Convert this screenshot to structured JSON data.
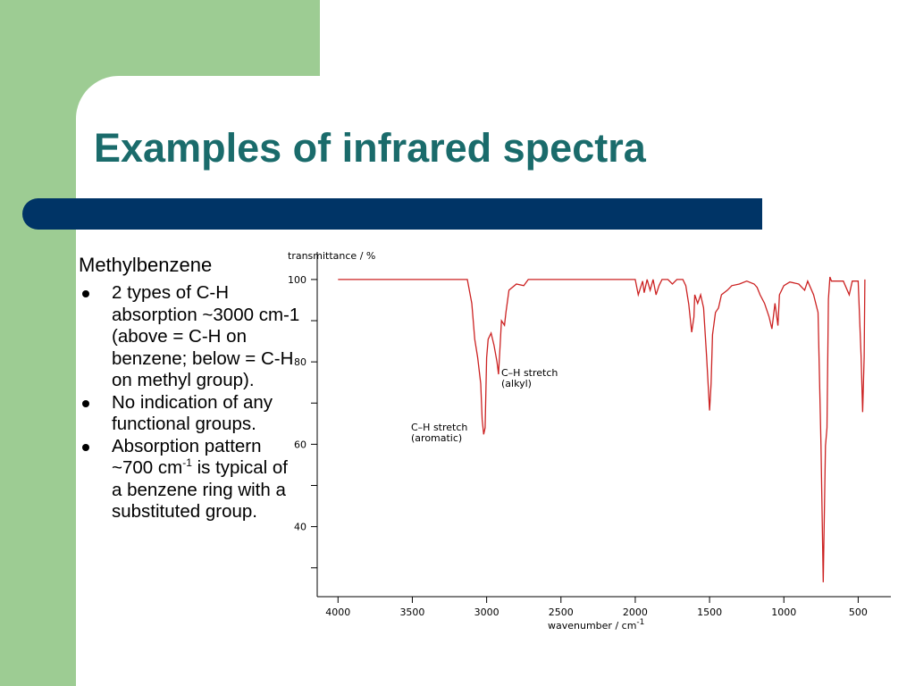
{
  "slide": {
    "title": "Examples of infrared spectra",
    "subtitle": "Methylbenzene",
    "bullets": [
      {
        "text": "2 types of C-H absorption ~3000 cm-1 (above = C-H on benzene; below = C-H on methyl group)."
      },
      {
        "text": "No indication of any functional groups."
      },
      {
        "text": "Absorption pattern ~700 cm",
        "superscript": "-1",
        "text_after": " is typical of a benzene ring with a substituted group."
      }
    ]
  },
  "chart_data": {
    "type": "line",
    "y_label": "transmittance / %",
    "x_label": "wavenumber / cm",
    "x_label_superscript": "-1",
    "xlim": [
      4140,
      280
    ],
    "ylim": [
      23,
      106.7
    ],
    "xticks": [
      4000,
      3500,
      3000,
      2500,
      2000,
      1500,
      1000,
      500
    ],
    "yticks": [
      40,
      60,
      80,
      100
    ],
    "yticks_minor": [
      30,
      50,
      70,
      90
    ],
    "color": "#cc2222",
    "annotations": [
      [
        "C–H stretch",
        "(alkyl)"
      ],
      [
        "C–H stretch",
        "(aromatic)"
      ]
    ],
    "x": [
      4000,
      3130,
      3100,
      3080,
      3060,
      3040,
      3030,
      3020,
      3010,
      3000,
      2990,
      2970,
      2950,
      2930,
      2920,
      2910,
      2900,
      2880,
      2870,
      2850,
      2800,
      2750,
      2720,
      2000,
      1980,
      1950,
      1940,
      1920,
      1900,
      1880,
      1860,
      1840,
      1820,
      1780,
      1750,
      1720,
      1680,
      1660,
      1640,
      1620,
      1605,
      1600,
      1580,
      1560,
      1540,
      1520,
      1500,
      1490,
      1480,
      1460,
      1440,
      1420,
      1380,
      1350,
      1300,
      1250,
      1200,
      1180,
      1160,
      1130,
      1100,
      1080,
      1060,
      1040,
      1030,
      1000,
      960,
      900,
      860,
      840,
      800,
      770,
      750,
      735,
      720,
      710,
      700,
      690,
      680,
      600,
      560,
      540,
      500,
      480,
      470,
      460,
      455
    ],
    "values": [
      100,
      100,
      94.2,
      85.5,
      81,
      74.7,
      66,
      62.4,
      64,
      81,
      85.5,
      87,
      84,
      80,
      77,
      83.6,
      90,
      88.9,
      92,
      97.4,
      98.9,
      98.5,
      100,
      100,
      96.3,
      99.6,
      96.8,
      100,
      97.4,
      100,
      96.3,
      98.5,
      100,
      100,
      98.9,
      100,
      100,
      98.5,
      94,
      87.2,
      90.9,
      96.3,
      94.2,
      96.3,
      93.1,
      81.2,
      68.2,
      74.7,
      86.6,
      92,
      93.1,
      96.3,
      97.4,
      98.5,
      98.9,
      99.6,
      98.9,
      98.1,
      96.3,
      94.2,
      91,
      88,
      94.2,
      88.8,
      96.3,
      98.5,
      99.4,
      98.9,
      97.4,
      99.6,
      96.3,
      92,
      59.6,
      26.5,
      59.6,
      64,
      95.2,
      100.6,
      99.6,
      99.6,
      96.3,
      99.6,
      99.6,
      81.2,
      67.8,
      81.2,
      100
    ]
  }
}
